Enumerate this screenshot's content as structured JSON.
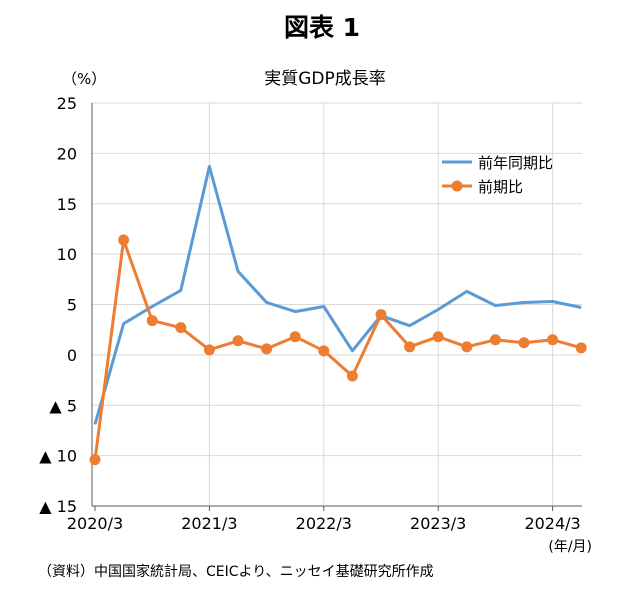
{
  "figure_title": "図表 1",
  "source_note": "（資料）中国国家統計局、CEICより、ニッセイ基礎研究所作成",
  "chart_data": {
    "type": "line",
    "title": "実質GDP成長率",
    "ylabel": "（%）",
    "xlabel": "(年/月)",
    "ylim": [
      -15,
      25
    ],
    "y_ticks": [
      25,
      20,
      15,
      10,
      5,
      0,
      -5,
      -10,
      -15
    ],
    "y_tick_labels": [
      "25",
      "20",
      "15",
      "10",
      "5",
      "0",
      "▲ 5",
      "▲ 10",
      "▲ 15"
    ],
    "x": [
      "2020/3",
      "2020/6",
      "2020/9",
      "2020/12",
      "2021/3",
      "2021/6",
      "2021/9",
      "2021/12",
      "2022/3",
      "2022/6",
      "2022/9",
      "2022/12",
      "2023/3",
      "2023/6",
      "2023/9",
      "2023/12",
      "2024/3",
      "2024/6"
    ],
    "x_tick_labels": [
      "2020/3",
      "2021/3",
      "2022/3",
      "2023/3",
      "2024/3"
    ],
    "grid": true,
    "legend_position": "top-right",
    "series": [
      {
        "name": "前年同期比",
        "color": "#5b9bd5",
        "markers": false,
        "values": [
          -6.9,
          3.1,
          4.8,
          6.4,
          18.7,
          8.3,
          5.2,
          4.3,
          4.8,
          0.4,
          3.9,
          2.9,
          4.5,
          6.3,
          4.9,
          5.2,
          5.3,
          4.7
        ]
      },
      {
        "name": "前期比",
        "color": "#ed7d31",
        "markers": true,
        "values": [
          -10.4,
          11.4,
          3.4,
          2.7,
          0.5,
          1.4,
          0.6,
          1.8,
          0.4,
          -2.1,
          4.0,
          0.8,
          1.8,
          0.8,
          1.5,
          1.2,
          1.5,
          0.7
        ]
      }
    ]
  }
}
